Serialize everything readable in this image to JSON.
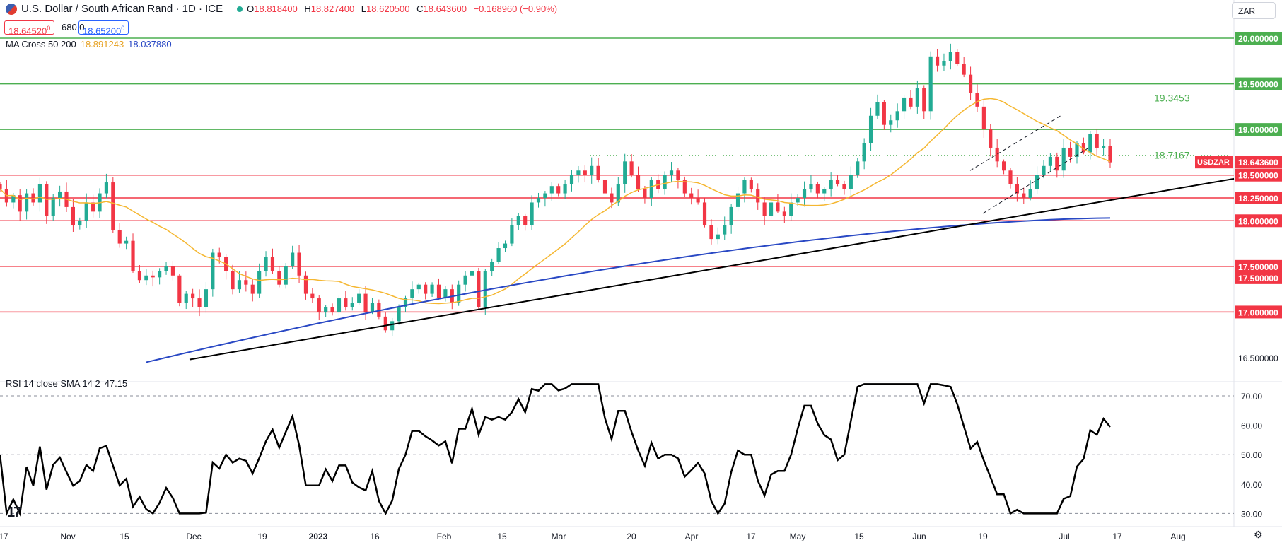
{
  "header": {
    "title": "U.S. Dollar / South African Rand · 1D · ICE",
    "open_label": "O",
    "open": "18.818400",
    "high_label": "H",
    "high": "18.827400",
    "low_label": "L",
    "low": "18.620500",
    "close_label": "C",
    "close": "18.643600",
    "change": "−0.168960 (−0.90%)"
  },
  "quote": {
    "bid": "18.64520",
    "bid_sup": "0",
    "spread": "680.0",
    "ask": "18.65200",
    "ask_sup": "0"
  },
  "currency_selector": "ZAR",
  "ma_legend": {
    "name": "MA Cross 50 200",
    "ma50": "18.891243",
    "ma200": "18.037880"
  },
  "rsi_legend": {
    "name": "RSI 14 close SMA 14 2",
    "value": "47.15"
  },
  "logo_text": "17",
  "settings_icon": "gear-icon",
  "colors": {
    "up": "#22ab94",
    "down": "#f23645",
    "ma50": "#f5b731",
    "ma200": "#2948c4",
    "support_green": "#4caf50",
    "support_red": "#f23645",
    "trend": "#000000",
    "rsi": "#000000"
  },
  "chart_data": [
    {
      "type": "candlestick",
      "symbol": "USDZAR",
      "last_price_label": "USDZAR",
      "last_price": "18.643600",
      "ylim": [
        16.4,
        20.2
      ],
      "y_ticks": [
        "20.000000",
        "19.500000",
        "19.000000",
        "18.500000",
        "18.250000",
        "18.000000",
        "17.500000",
        "17.500000",
        "17.000000",
        "16.500000"
      ],
      "x_ticks": [
        "17",
        "Nov",
        "15",
        "Dec",
        "19",
        "2023",
        "16",
        "Feb",
        "15",
        "Mar",
        "20",
        "Apr",
        "17",
        "May",
        "15",
        "Jun",
        "19",
        "Jul",
        "17",
        "Aug"
      ],
      "horizontal_levels": [
        {
          "value": 20.0,
          "color": "green",
          "label": "20.000000"
        },
        {
          "value": 19.5,
          "color": "green",
          "label": "19.500000"
        },
        {
          "value": 19.0,
          "color": "green",
          "label": "19.000000"
        },
        {
          "value": 18.5,
          "color": "red",
          "label": "18.500000"
        },
        {
          "value": 18.25,
          "color": "red",
          "label": "18.250000"
        },
        {
          "value": 18.0,
          "color": "red",
          "label": "18.000000"
        },
        {
          "value": 17.5,
          "color": "red",
          "label": "17.500000"
        },
        {
          "value": 17.0,
          "color": "red",
          "label": "17.000000"
        }
      ],
      "dotted_levels": [
        {
          "value": 19.3453,
          "label": "19.3453"
        },
        {
          "value": 18.7167,
          "label": "18.7167"
        }
      ],
      "closes": [
        18.35,
        18.2,
        18.28,
        18.1,
        18.3,
        18.2,
        18.4,
        18.05,
        18.25,
        18.32,
        18.15,
        17.95,
        18.0,
        18.2,
        18.1,
        18.3,
        18.42,
        17.9,
        17.75,
        17.78,
        17.45,
        17.35,
        17.4,
        17.38,
        17.45,
        17.5,
        17.4,
        17.1,
        17.2,
        17.15,
        17.05,
        17.25,
        17.65,
        17.6,
        17.45,
        17.25,
        17.35,
        17.3,
        17.2,
        17.45,
        17.6,
        17.45,
        17.3,
        17.5,
        17.65,
        17.4,
        17.2,
        17.15,
        17.0,
        17.05,
        17.0,
        17.15,
        17.05,
        17.1,
        17.2,
        17.0,
        17.1,
        16.95,
        16.8,
        16.9,
        17.05,
        17.15,
        17.25,
        17.3,
        17.2,
        17.3,
        17.15,
        17.25,
        17.1,
        17.3,
        17.4,
        17.45,
        17.05,
        17.45,
        17.55,
        17.7,
        17.75,
        17.95,
        18.05,
        17.95,
        18.2,
        18.25,
        18.3,
        18.38,
        18.3,
        18.4,
        18.5,
        18.55,
        18.5,
        18.6,
        18.45,
        18.3,
        18.2,
        18.4,
        18.65,
        18.5,
        18.35,
        18.25,
        18.45,
        18.35,
        18.5,
        18.55,
        18.45,
        18.3,
        18.25,
        18.2,
        17.95,
        17.8,
        17.85,
        17.95,
        18.15,
        18.3,
        18.45,
        18.35,
        18.2,
        18.05,
        18.2,
        18.1,
        18.05,
        18.2,
        18.25,
        18.35,
        18.4,
        18.3,
        18.35,
        18.45,
        18.4,
        18.35,
        18.5,
        18.65,
        18.85,
        19.15,
        19.3,
        19.05,
        19.1,
        19.2,
        19.35,
        19.25,
        19.45,
        19.2,
        19.8,
        19.7,
        19.75,
        19.85,
        19.72,
        19.6,
        19.4,
        19.25,
        19.0,
        18.8,
        18.65,
        18.55,
        18.4,
        18.3,
        18.25,
        18.35,
        18.5,
        18.6,
        18.7,
        18.55,
        18.8,
        18.7,
        18.85,
        18.75,
        18.95,
        18.8,
        18.82,
        18.64
      ]
    },
    {
      "type": "line",
      "name": "RSI 14 close SMA 14 2",
      "ylim": [
        25,
        77
      ],
      "y_ticks": [
        "70.00",
        "60.00",
        "50.00",
        "40.00",
        "30.00"
      ],
      "reference_lines": [
        70,
        50,
        30
      ],
      "last_value": "47.15"
    }
  ]
}
